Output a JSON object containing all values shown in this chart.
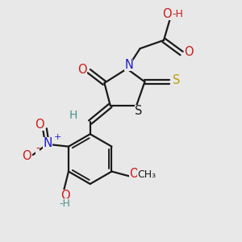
{
  "bg_color": "#e8e8e8",
  "bond_color": "#1a1a1a",
  "bond_lw": 1.6,
  "font_size": 9,
  "colors": {
    "C": "#1a1a1a",
    "N": "#1a1acc",
    "O": "#cc1a1a",
    "S_yellow": "#b8a000",
    "S_black": "#1a1a1a",
    "H_teal": "#4a9090",
    "plus": "#1a1acc",
    "minus": "#cc1a1a"
  },
  "xlim": [
    0,
    10
  ],
  "ylim": [
    0,
    10
  ]
}
